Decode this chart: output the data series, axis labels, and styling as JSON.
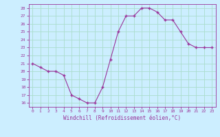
{
  "x": [
    0,
    1,
    2,
    3,
    4,
    5,
    6,
    7,
    8,
    9,
    10,
    11,
    12,
    13,
    14,
    15,
    16,
    17,
    18,
    19,
    20,
    21,
    22,
    23
  ],
  "y": [
    21,
    20.5,
    20,
    20,
    19.5,
    17,
    16.5,
    16,
    16,
    18,
    21.5,
    25,
    27,
    27,
    28,
    28,
    27.5,
    26.5,
    26.5,
    25,
    23.5,
    23,
    23,
    23
  ],
  "line_color": "#993399",
  "marker": "+",
  "bg_color": "#cceeff",
  "grid_color": "#aaddcc",
  "xlabel": "Windchill (Refroidissement éolien,°C)",
  "xlabel_color": "#993399",
  "tick_color": "#993399",
  "ylim": [
    15.5,
    28.5
  ],
  "yticks": [
    16,
    17,
    18,
    19,
    20,
    21,
    22,
    23,
    24,
    25,
    26,
    27,
    28
  ],
  "xticks": [
    0,
    1,
    2,
    3,
    4,
    5,
    6,
    7,
    8,
    9,
    10,
    11,
    12,
    13,
    14,
    15,
    16,
    17,
    18,
    19,
    20,
    21,
    22,
    23
  ],
  "figsize": [
    3.2,
    2.0
  ],
  "dpi": 100
}
